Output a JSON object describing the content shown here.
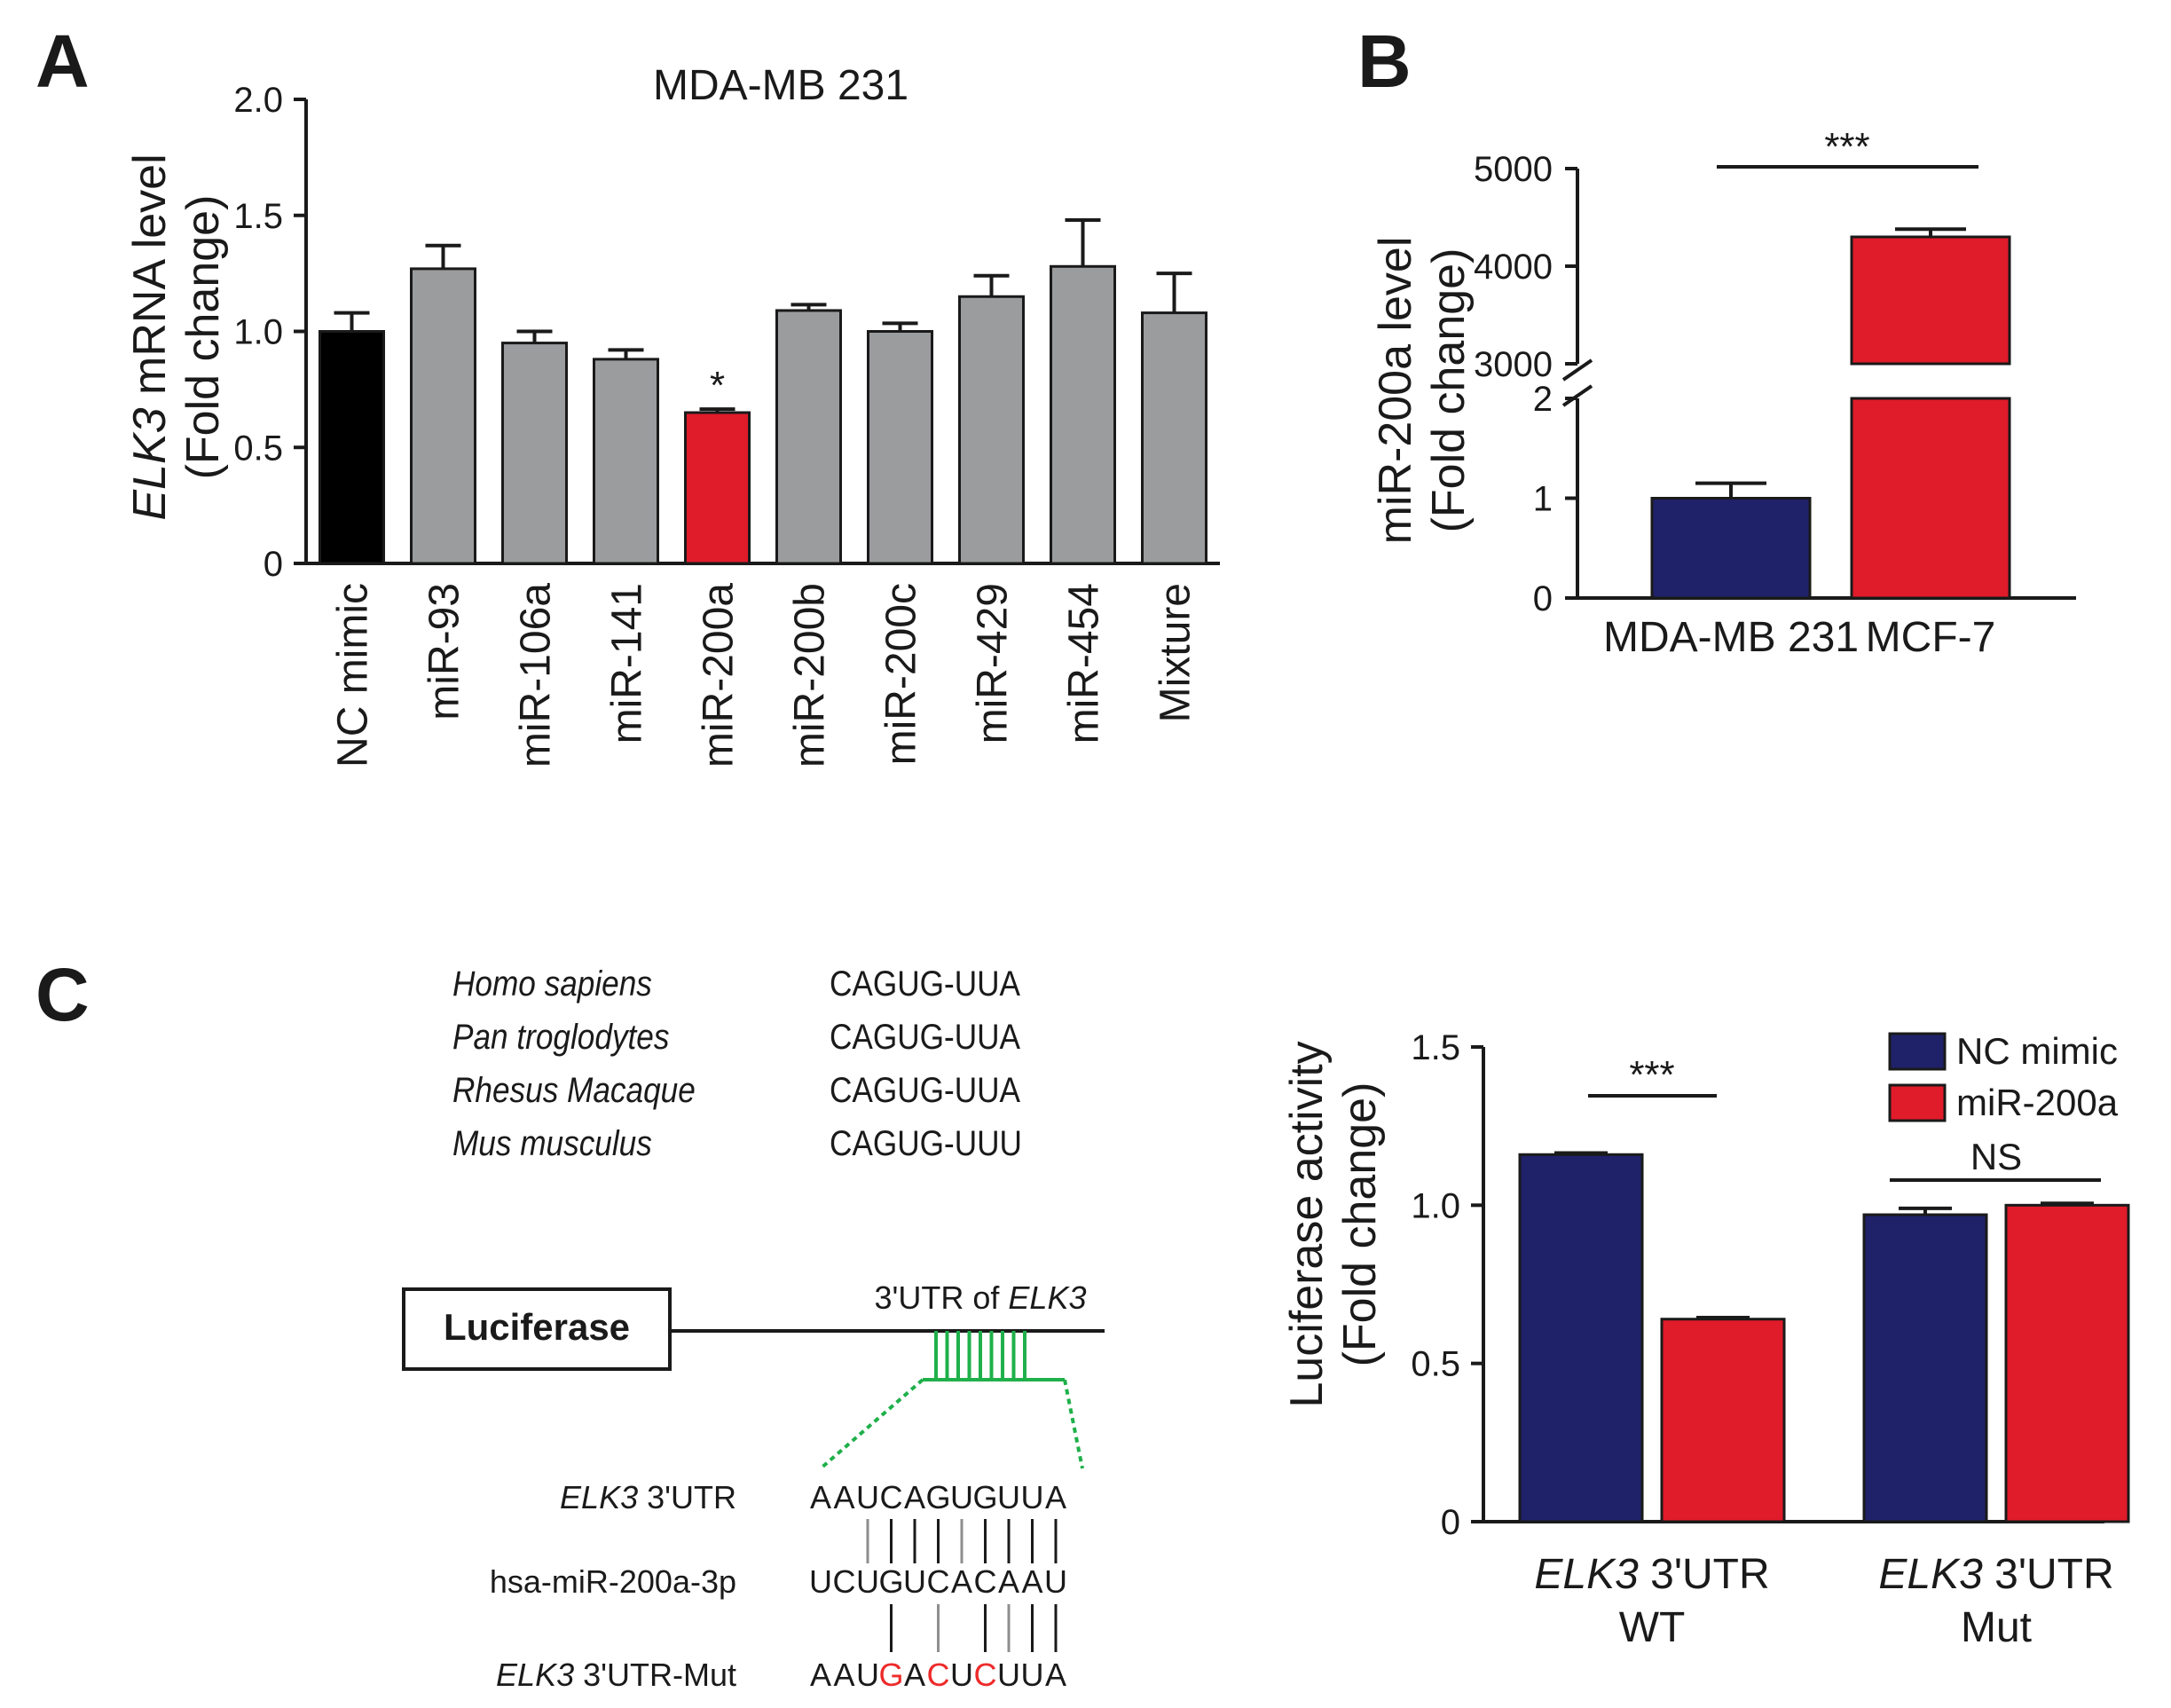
{
  "panel_labels": {
    "a": "A",
    "b": "B",
    "c": "C"
  },
  "colors": {
    "black": "#000000",
    "gray": "#9b9c9e",
    "red": "#e01b2a",
    "navy": "#1f2169",
    "green": "#1fb04a",
    "mut_red": "#ee2a2a"
  },
  "chart_data": [
    {
      "id": "A",
      "type": "bar",
      "title": "MDA-MB 231",
      "ylabel_italic": "ELK3",
      "ylabel_rest": " mRNA level",
      "ylabel2": "(Fold change)",
      "categories": [
        "NC mimic",
        "miR-93",
        "miR-106a",
        "miR-141",
        "miR-200a",
        "miR-200b",
        "miR-200c",
        "miR-429",
        "miR-454",
        "Mixture"
      ],
      "values": [
        1.0,
        1.27,
        0.95,
        0.88,
        0.65,
        1.09,
        1.0,
        1.15,
        1.28,
        1.08
      ],
      "errors": [
        0.08,
        0.1,
        0.05,
        0.04,
        0.015,
        0.025,
        0.035,
        0.09,
        0.2,
        0.17
      ],
      "colors": [
        "black",
        "gray",
        "gray",
        "gray",
        "red",
        "gray",
        "gray",
        "gray",
        "gray",
        "gray"
      ],
      "ylim": [
        0,
        2.0
      ],
      "yticks": [
        "0",
        "0.5",
        "1.0",
        "1.5",
        "2.0"
      ],
      "annotations": [
        {
          "category": "miR-200a",
          "text": "*"
        }
      ]
    },
    {
      "id": "B",
      "type": "bar",
      "ylabel": "miR-200a level",
      "ylabel2": "(Fold change)",
      "categories": [
        "MDA-MB 231",
        "MCF-7"
      ],
      "values": [
        1.0,
        4300
      ],
      "errors": [
        0.15,
        80
      ],
      "colors": [
        "navy",
        "red"
      ],
      "broken_axis": {
        "lower": [
          0,
          2
        ],
        "upper": [
          3000,
          5000
        ]
      },
      "yticks_lower": [
        "0",
        "1",
        "2"
      ],
      "yticks_upper": [
        "3000",
        "4000",
        "5000"
      ],
      "significance": "***"
    },
    {
      "id": "C",
      "type": "bar",
      "ylabel": "Luciferase activity",
      "ylabel2": "(Fold change)",
      "groups": [
        {
          "italic": "ELK3",
          "rest": " 3'UTR",
          "line2": "WT"
        },
        {
          "italic": "ELK3",
          "rest": " 3'UTR",
          "line2": "Mut"
        }
      ],
      "series": [
        {
          "name": "NC mimic",
          "color": "navy",
          "values": [
            1.16,
            0.97
          ],
          "errors": [
            0.005,
            0.02
          ]
        },
        {
          "name": "miR-200a",
          "color": "red",
          "values": [
            0.64,
            1.0
          ],
          "errors": [
            0.005,
            0.006
          ]
        }
      ],
      "ylim": [
        0,
        1.5
      ],
      "yticks": [
        "0",
        "0.5",
        "1.0",
        "1.5"
      ],
      "significance": [
        "***",
        "NS"
      ]
    }
  ],
  "species": [
    {
      "name": "Homo sapiens",
      "seq": "CAGUG-UUA"
    },
    {
      "name": "Pan troglodytes",
      "seq": "CAGUG-UUA"
    },
    {
      "name": "Rhesus Macaque",
      "seq": "CAGUG-UUA"
    },
    {
      "name": "Mus musculus",
      "seq": "CAGUG-UUU"
    }
  ],
  "construct": {
    "box_label": "Luciferase",
    "utr_prefix": "3'UTR of ",
    "utr_gene": "ELK3"
  },
  "alignment": {
    "row1_italic": "ELK3",
    "row1_rest": " 3'UTR",
    "row1_seq": "AAUCAGUGUUA",
    "row2_label": "hsa-miR-200a-3p",
    "row2_seq": "UCUGUCACAAU",
    "row3_italic": "ELK3",
    "row3_rest": " 3'UTR-Mut",
    "row3_seq": "AAUGACUCUUA",
    "mut_positions": [
      3,
      5,
      7
    ]
  }
}
